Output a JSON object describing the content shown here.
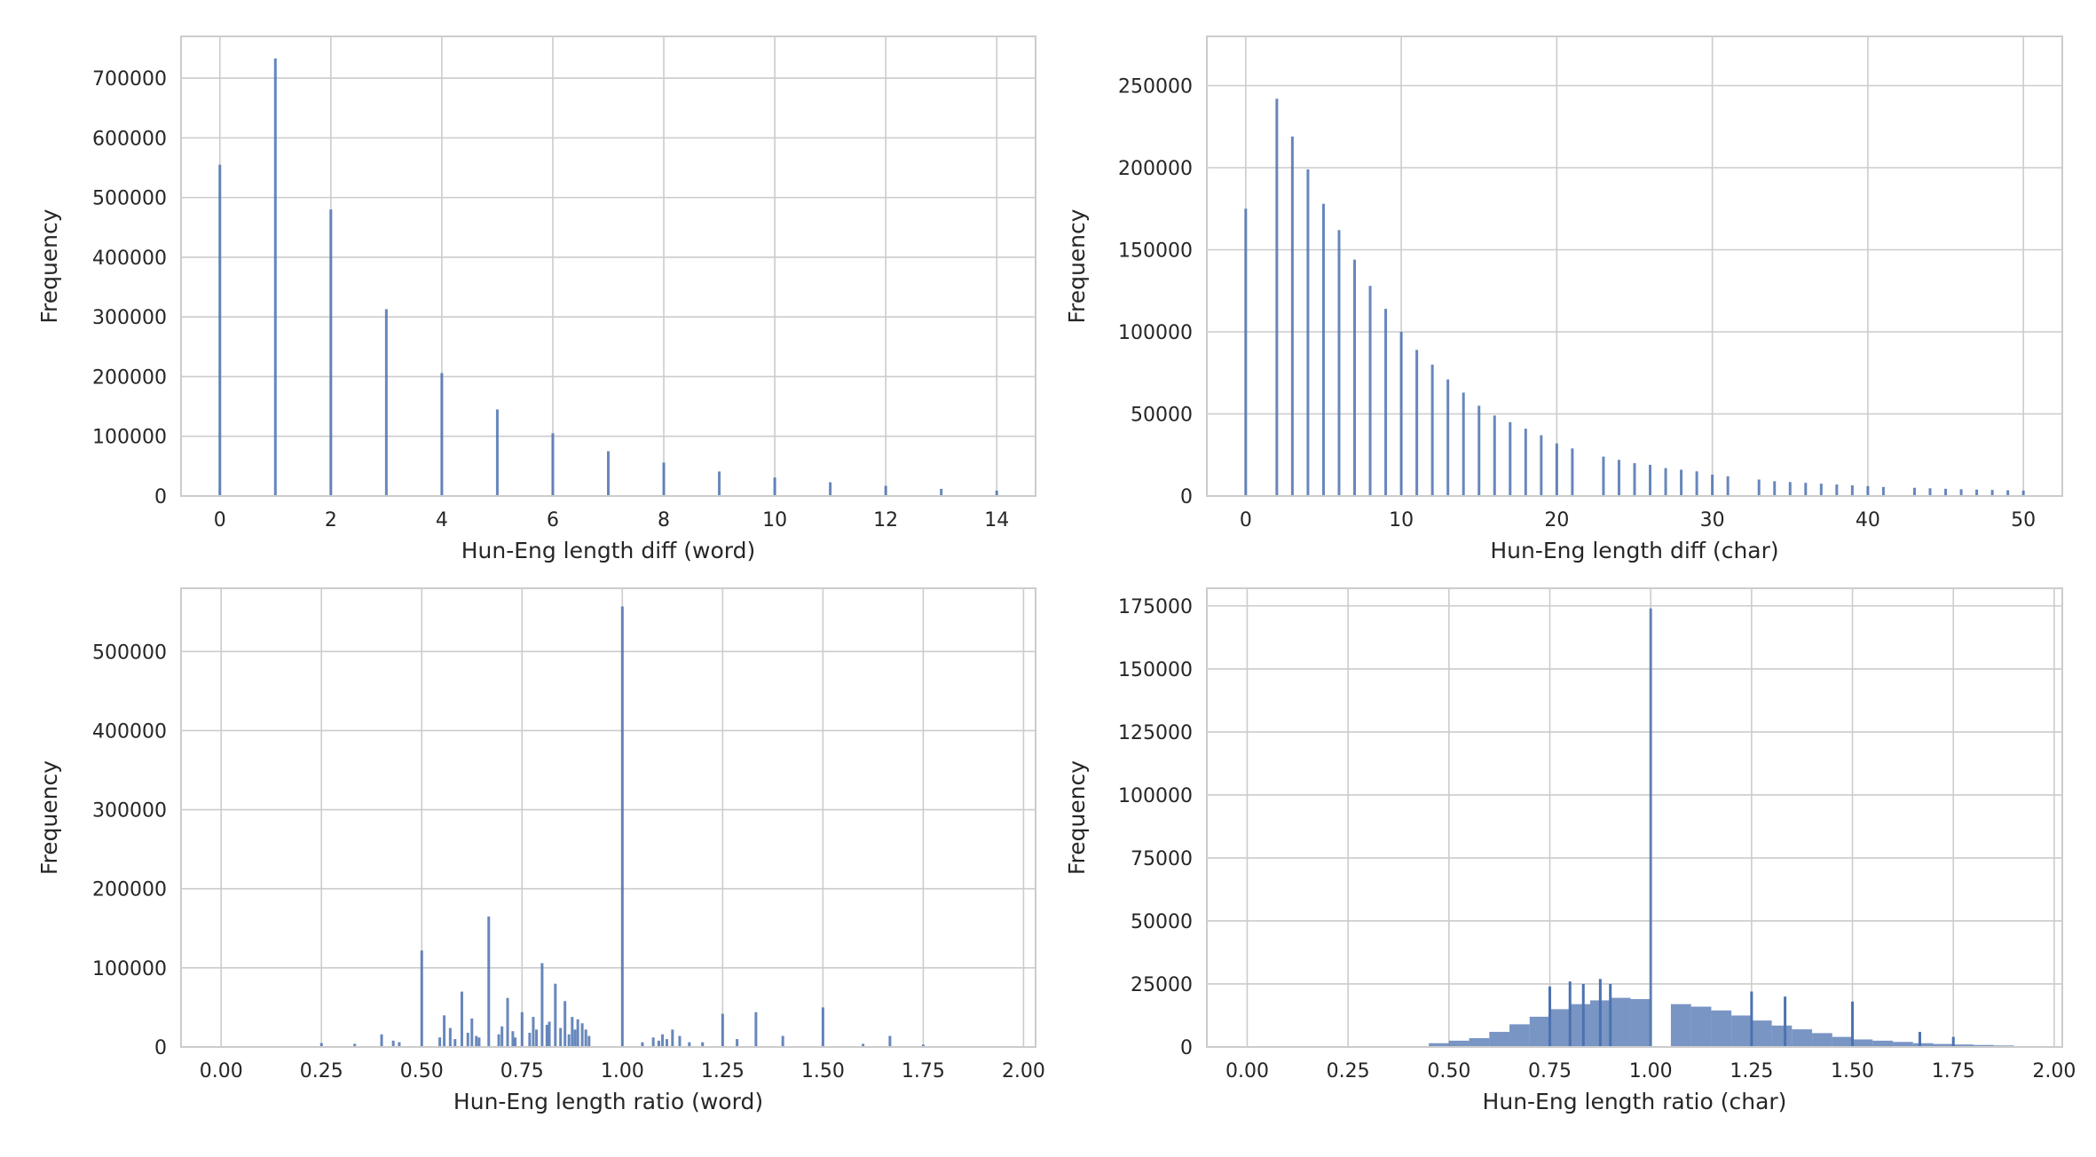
{
  "figure": {
    "bar_color": "#4c72b0",
    "grid_color": "#cccccc",
    "spine_color": "#cccccc",
    "background": "#ffffff"
  },
  "chart_data": [
    {
      "type": "bar",
      "title": "",
      "xlabel": "Hun-Eng length diff (word)",
      "ylabel": "Frequency",
      "xlim": [
        -0.7,
        14.7
      ],
      "ylim": [
        0,
        770000
      ],
      "xticks": [
        0,
        2,
        4,
        6,
        8,
        10,
        12,
        14
      ],
      "xtick_labels": [
        "0",
        "2",
        "4",
        "6",
        "8",
        "10",
        "12",
        "14"
      ],
      "yticks": [
        0,
        100000,
        200000,
        300000,
        400000,
        500000,
        600000,
        700000
      ],
      "ytick_labels": [
        "0",
        "100000",
        "200000",
        "300000",
        "400000",
        "500000",
        "600000",
        "700000"
      ],
      "grid": true,
      "x": [
        0,
        1,
        2,
        3,
        4,
        5,
        6,
        7,
        8,
        9,
        10,
        11,
        12,
        13,
        14
      ],
      "values": [
        555000,
        733000,
        480000,
        313000,
        206000,
        145000,
        105000,
        75000,
        56000,
        41000,
        31000,
        23000,
        17000,
        12000,
        9000
      ]
    },
    {
      "type": "bar",
      "title": "",
      "xlabel": "Hun-Eng length diff (char)",
      "ylabel": "Frequency",
      "xlim": [
        -2.5,
        52.5
      ],
      "ylim": [
        0,
        280000
      ],
      "xticks": [
        0,
        10,
        20,
        30,
        40,
        50
      ],
      "xtick_labels": [
        "0",
        "10",
        "20",
        "30",
        "40",
        "50"
      ],
      "yticks": [
        0,
        50000,
        100000,
        150000,
        200000,
        250000
      ],
      "ytick_labels": [
        "0",
        "50000",
        "100000",
        "150000",
        "200000",
        "250000"
      ],
      "grid": true,
      "x": [
        0,
        2,
        3,
        4,
        5,
        6,
        7,
        8,
        9,
        10,
        11,
        12,
        13,
        14,
        15,
        16,
        17,
        18,
        19,
        20,
        21,
        23,
        24,
        25,
        26,
        27,
        28,
        29,
        30,
        31,
        33,
        34,
        35,
        36,
        37,
        38,
        39,
        40,
        41,
        43,
        44,
        45,
        46,
        47,
        48,
        49,
        50
      ],
      "values": [
        175000,
        242000,
        219000,
        199000,
        178000,
        162000,
        144000,
        128000,
        114000,
        100000,
        89000,
        80000,
        71000,
        63000,
        55000,
        49000,
        45000,
        41000,
        37000,
        32000,
        29000,
        24000,
        22000,
        20000,
        19000,
        17000,
        16000,
        15000,
        13000,
        12000,
        10000,
        9000,
        8500,
        8000,
        7500,
        7000,
        6500,
        6000,
        5500,
        5000,
        4700,
        4400,
        4100,
        3900,
        3700,
        3500,
        3300
      ]
    },
    {
      "type": "bar",
      "title": "",
      "xlabel": "Hun-Eng length ratio (word)",
      "ylabel": "Frequency",
      "xlim": [
        -0.1,
        2.03
      ],
      "ylim": [
        0,
        580000
      ],
      "xticks": [
        0.0,
        0.25,
        0.5,
        0.75,
        1.0,
        1.25,
        1.5,
        1.75,
        2.0
      ],
      "xtick_labels": [
        "0.00",
        "0.25",
        "0.50",
        "0.75",
        "1.00",
        "1.25",
        "1.50",
        "1.75",
        "2.00"
      ],
      "yticks": [
        0,
        100000,
        200000,
        300000,
        400000,
        500000
      ],
      "ytick_labels": [
        "0",
        "100000",
        "200000",
        "300000",
        "400000",
        "500000"
      ],
      "grid": true,
      "x": [
        0.25,
        0.333,
        0.4,
        0.429,
        0.444,
        0.5,
        0.545,
        0.556,
        0.571,
        0.583,
        0.6,
        0.615,
        0.625,
        0.636,
        0.643,
        0.667,
        0.692,
        0.7,
        0.714,
        0.727,
        0.733,
        0.75,
        0.769,
        0.778,
        0.786,
        0.8,
        0.812,
        0.818,
        0.833,
        0.846,
        0.857,
        0.867,
        0.875,
        0.882,
        0.889,
        0.9,
        0.909,
        0.917,
        1.0,
        1.05,
        1.077,
        1.091,
        1.1,
        1.111,
        1.125,
        1.143,
        1.167,
        1.2,
        1.25,
        1.286,
        1.333,
        1.4,
        1.5,
        1.6,
        1.667,
        1.75
      ],
      "values": [
        5000,
        4000,
        16000,
        8000,
        6000,
        122000,
        12000,
        40000,
        24000,
        10000,
        70000,
        18000,
        36000,
        14000,
        12000,
        165000,
        16000,
        26000,
        62000,
        20000,
        12000,
        44000,
        18000,
        38000,
        22000,
        106000,
        28000,
        32000,
        80000,
        24000,
        58000,
        16000,
        38000,
        22000,
        35000,
        30000,
        22000,
        14000,
        557000,
        6000,
        12000,
        8000,
        16000,
        10000,
        22000,
        14000,
        6000,
        6000,
        42000,
        10000,
        44000,
        14000,
        50000,
        4000,
        14000,
        3000
      ]
    },
    {
      "type": "bar",
      "title": "",
      "xlabel": "Hun-Eng length ratio (char)",
      "ylabel": "Frequency",
      "xlim": [
        -0.1,
        2.02
      ],
      "ylim": [
        0,
        182000
      ],
      "xticks": [
        0.0,
        0.25,
        0.5,
        0.75,
        1.0,
        1.25,
        1.5,
        1.75,
        2.0
      ],
      "xtick_labels": [
        "0.00",
        "0.25",
        "0.50",
        "0.75",
        "1.00",
        "1.25",
        "1.50",
        "1.75",
        "2.00"
      ],
      "yticks": [
        0,
        25000,
        50000,
        75000,
        100000,
        125000,
        150000,
        175000
      ],
      "ytick_labels": [
        "0",
        "25000",
        "50000",
        "75000",
        "100000",
        "125000",
        "150000",
        "175000"
      ],
      "grid": true,
      "bin_width": 0.005,
      "x": [
        0.45,
        0.5,
        0.55,
        0.6,
        0.65,
        0.7,
        0.75,
        0.8,
        0.85,
        0.9,
        0.95,
        1.0,
        1.05,
        1.1,
        1.15,
        1.2,
        1.25,
        1.3,
        1.35,
        1.4,
        1.45,
        1.5,
        1.55,
        1.6,
        1.65,
        1.7,
        1.75,
        1.8,
        1.85
      ],
      "values": [
        1500,
        2500,
        3500,
        6000,
        9000,
        12000,
        15000,
        17000,
        18500,
        19500,
        19000,
        174000,
        17000,
        16000,
        14500,
        12500,
        10500,
        8500,
        7000,
        5500,
        4000,
        3000,
        2500,
        2000,
        1500,
        1200,
        1000,
        800,
        600
      ],
      "spikes": [
        {
          "x": 0.75,
          "value": 24000
        },
        {
          "x": 0.8,
          "value": 26000
        },
        {
          "x": 0.833,
          "value": 25000
        },
        {
          "x": 0.875,
          "value": 27000
        },
        {
          "x": 0.9,
          "value": 25000
        },
        {
          "x": 1.25,
          "value": 22000
        },
        {
          "x": 1.333,
          "value": 20000
        },
        {
          "x": 1.5,
          "value": 18000
        },
        {
          "x": 1.667,
          "value": 6000
        },
        {
          "x": 1.75,
          "value": 4000
        }
      ]
    }
  ]
}
